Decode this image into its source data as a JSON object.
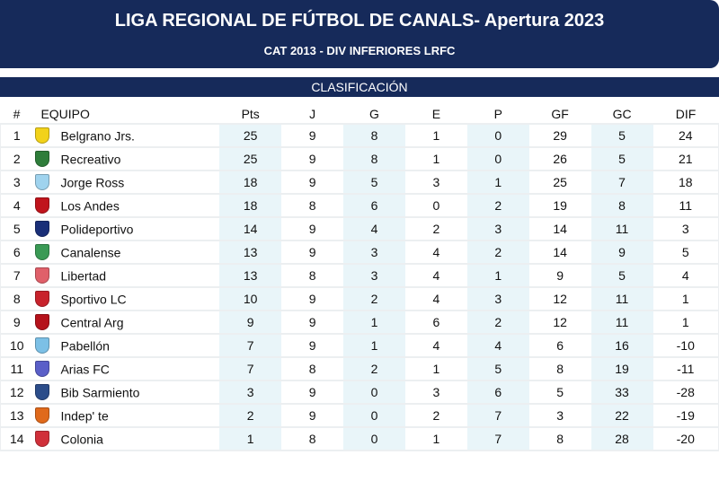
{
  "header": {
    "title": "LIGA REGIONAL DE FÚTBOL DE CANALS- Apertura 2023",
    "subtitle": "CAT 2013 - DIV INFERIORES LRFC"
  },
  "section": {
    "title": "CLASIFICACIÓN"
  },
  "columns": [
    "#",
    "EQUIPO",
    "Pts",
    "J",
    "G",
    "E",
    "P",
    "GF",
    "GC",
    "DIF"
  ],
  "rows": [
    {
      "pos": "1",
      "team": "Belgrano Jrs.",
      "pts": "25",
      "j": "9",
      "g": "8",
      "e": "1",
      "p": "0",
      "gf": "29",
      "gc": "5",
      "dif": "24",
      "logo": "belgrano-crest-icon",
      "color": "#f2d21a"
    },
    {
      "pos": "2",
      "team": "Recreativo",
      "pts": "25",
      "j": "9",
      "g": "8",
      "e": "1",
      "p": "0",
      "gf": "26",
      "gc": "5",
      "dif": "21",
      "logo": "recreativo-crest-icon",
      "color": "#2e7d3a"
    },
    {
      "pos": "3",
      "team": "Jorge Ross",
      "pts": "18",
      "j": "9",
      "g": "5",
      "e": "3",
      "p": "1",
      "gf": "25",
      "gc": "7",
      "dif": "18",
      "logo": "jorge-ross-crest-icon",
      "color": "#9fd3ee"
    },
    {
      "pos": "4",
      "team": "Los Andes",
      "pts": "18",
      "j": "8",
      "g": "6",
      "e": "0",
      "p": "2",
      "gf": "19",
      "gc": "8",
      "dif": "11",
      "logo": "los-andes-crest-icon",
      "color": "#c0141c"
    },
    {
      "pos": "5",
      "team": "Polideportivo",
      "pts": "14",
      "j": "9",
      "g": "4",
      "e": "2",
      "p": "3",
      "gf": "14",
      "gc": "11",
      "dif": "3",
      "logo": "polideportivo-crest-icon",
      "color": "#1a2f78"
    },
    {
      "pos": "6",
      "team": "Canalense",
      "pts": "13",
      "j": "9",
      "g": "3",
      "e": "4",
      "p": "2",
      "gf": "14",
      "gc": "9",
      "dif": "5",
      "logo": "canalense-crest-icon",
      "color": "#3a9a55"
    },
    {
      "pos": "7",
      "team": "Libertad",
      "pts": "13",
      "j": "8",
      "g": "3",
      "e": "4",
      "p": "1",
      "gf": "9",
      "gc": "5",
      "dif": "4",
      "logo": "libertad-crest-icon",
      "color": "#e0606a"
    },
    {
      "pos": "8",
      "team": "Sportivo LC",
      "pts": "10",
      "j": "9",
      "g": "2",
      "e": "4",
      "p": "3",
      "gf": "12",
      "gc": "11",
      "dif": "1",
      "logo": "sportivo-crest-icon",
      "color": "#c8232c"
    },
    {
      "pos": "9",
      "team": "Central Arg",
      "pts": "9",
      "j": "9",
      "g": "1",
      "e": "6",
      "p": "2",
      "gf": "12",
      "gc": "11",
      "dif": "1",
      "logo": "central-arg-crest-icon",
      "color": "#b5121b"
    },
    {
      "pos": "10",
      "team": "Pabellón",
      "pts": "7",
      "j": "9",
      "g": "1",
      "e": "4",
      "p": "4",
      "gf": "6",
      "gc": "16",
      "dif": "-10",
      "logo": "pabellon-crest-icon",
      "color": "#7cc0e6"
    },
    {
      "pos": "11",
      "team": "Arias FC",
      "pts": "7",
      "j": "8",
      "g": "2",
      "e": "1",
      "p": "5",
      "gf": "8",
      "gc": "19",
      "dif": "-11",
      "logo": "arias-crest-icon",
      "color": "#5a5fc8"
    },
    {
      "pos": "12",
      "team": "Bib Sarmiento",
      "pts": "3",
      "j": "9",
      "g": "0",
      "e": "3",
      "p": "6",
      "gf": "5",
      "gc": "33",
      "dif": "-28",
      "logo": "sarmiento-crest-icon",
      "color": "#2c4d8a"
    },
    {
      "pos": "13",
      "team": "Indep' te",
      "pts": "2",
      "j": "9",
      "g": "0",
      "e": "2",
      "p": "7",
      "gf": "3",
      "gc": "22",
      "dif": "-19",
      "logo": "independiente-crest-icon",
      "color": "#e06a1c"
    },
    {
      "pos": "14",
      "team": "Colonia",
      "pts": "1",
      "j": "8",
      "g": "0",
      "e": "1",
      "p": "7",
      "gf": "8",
      "gc": "28",
      "dif": "-20",
      "logo": "colonia-crest-icon",
      "color": "#d0303a"
    }
  ]
}
